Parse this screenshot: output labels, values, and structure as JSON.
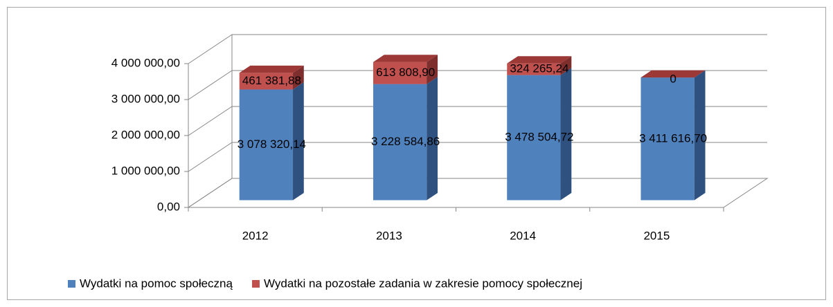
{
  "chart_data": {
    "type": "bar3d_stacked",
    "categories": [
      "2012",
      "2013",
      "2014",
      "2015"
    ],
    "series": [
      {
        "name": "Wydatki na pomoc społeczną",
        "color": "#4f81bd",
        "side": "#2f5180",
        "top": "#6a96cc",
        "values": [
          3078320.14,
          3228584.86,
          3478504.72,
          3411616.7
        ],
        "value_labels": [
          "3 078 320,14",
          "3 228 584,86",
          "3 478 504,72",
          "3 411 616,70"
        ]
      },
      {
        "name": "Wydatki na pozostałe zadania w zakresie pomocy społecznej",
        "color": "#c0504d",
        "side": "#7e2f2d",
        "top": "#9c3835",
        "values": [
          461381.88,
          613808.9,
          324265.24,
          0
        ],
        "value_labels": [
          "461 381,88",
          "613 808,90",
          "324 265,24",
          "0"
        ]
      }
    ],
    "ylim": [
      0,
      4000000
    ],
    "yticks": [
      {
        "value": 0,
        "label": "0,00"
      },
      {
        "value": 1000000,
        "label": "1 000 000,00"
      },
      {
        "value": 2000000,
        "label": "2 000 000,00"
      },
      {
        "value": 3000000,
        "label": "3 000 000,00"
      },
      {
        "value": 4000000,
        "label": "4 000 000,00"
      }
    ],
    "grid": true,
    "legend": "bottom"
  }
}
